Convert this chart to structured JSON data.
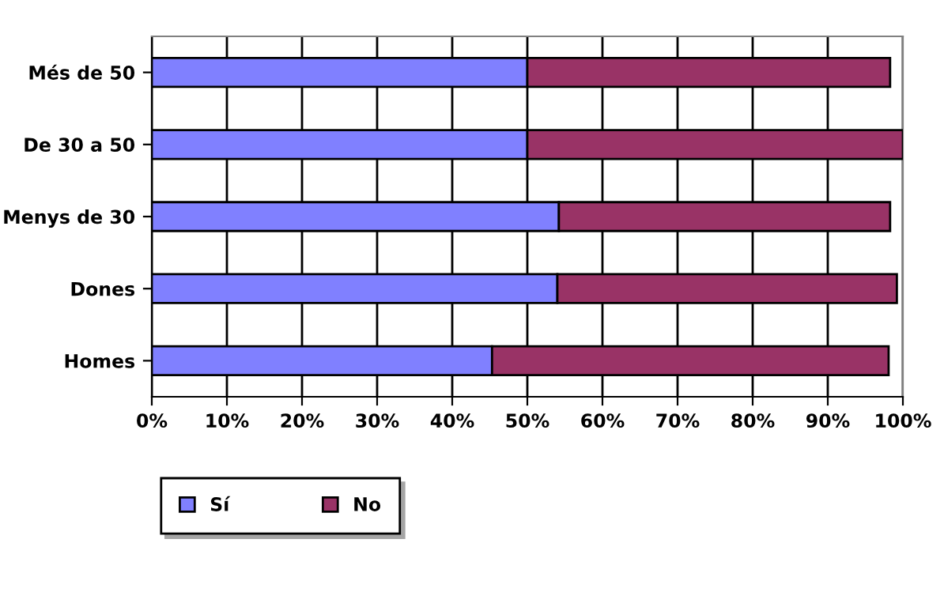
{
  "chart_data": {
    "type": "bar",
    "orientation": "horizontal",
    "stacked": true,
    "categories": [
      "Més de 50",
      "De 30 a 50",
      "Menys de 30",
      "Dones",
      "Homes"
    ],
    "series": [
      {
        "name": "Sí",
        "color": "#8080ff",
        "values": [
          50.0,
          50.0,
          54.2,
          54.0,
          45.3
        ]
      },
      {
        "name": "No",
        "color": "#993366",
        "values": [
          48.3,
          50.0,
          44.1,
          45.2,
          52.8
        ]
      }
    ],
    "xlim": [
      0,
      100
    ],
    "xticks": [
      {
        "value": 0,
        "label": "0%"
      },
      {
        "value": 10,
        "label": "10%"
      },
      {
        "value": 20,
        "label": "20%"
      },
      {
        "value": 30,
        "label": "30%"
      },
      {
        "value": 40,
        "label": "40%"
      },
      {
        "value": 50,
        "label": "50%"
      },
      {
        "value": 60,
        "label": "60%"
      },
      {
        "value": 70,
        "label": "70%"
      },
      {
        "value": 80,
        "label": "80%"
      },
      {
        "value": 90,
        "label": "90%"
      },
      {
        "value": 100,
        "label": "100%"
      }
    ],
    "grid": "x",
    "legend": "bottom left"
  }
}
